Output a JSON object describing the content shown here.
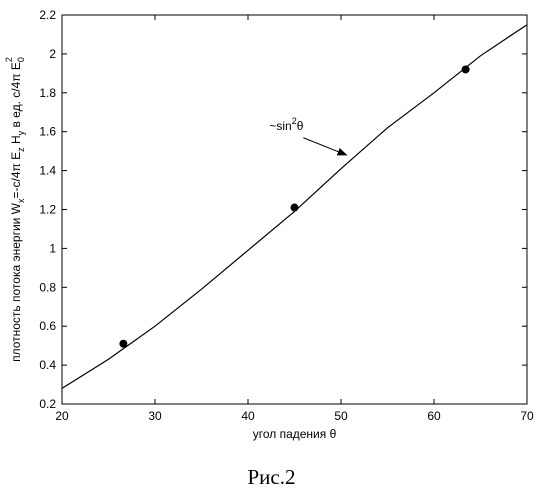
{
  "chart_data": {
    "type": "line",
    "xlabel": "угол падения θ",
    "ylabel": {
      "text_pre": "плотность потока энергии W",
      "sub_x": "x",
      "mid1": "=-c/4π E",
      "sub_z": "z",
      "mid2": " H",
      "sub_y": "y",
      "mid3": "  в ед. c/4π E",
      "sub_0": "0",
      "sup_2": "2"
    },
    "xlim": [
      20,
      70
    ],
    "ylim": [
      0.2,
      2.2
    ],
    "x_ticks": [
      20,
      30,
      40,
      50,
      60,
      70
    ],
    "x_tick_labels": [
      "20",
      "30",
      "40",
      "50",
      "60",
      "70"
    ],
    "y_ticks": [
      0.2,
      0.4,
      0.6,
      0.8,
      1.0,
      1.2,
      1.4,
      1.6,
      1.8,
      2.0,
      2.2
    ],
    "y_tick_labels": [
      "0.2",
      "0.4",
      "0.6",
      "0.8",
      "1",
      "1.2",
      "1.4",
      "1.6",
      "1.8",
      "2",
      "2.2"
    ],
    "grid": false,
    "series": [
      {
        "kind": "line",
        "x": [
          20,
          25,
          30,
          35,
          40,
          45,
          50,
          55,
          60,
          65,
          70
        ],
        "y": [
          0.28,
          0.43,
          0.6,
          0.79,
          0.99,
          1.19,
          1.41,
          1.62,
          1.8,
          1.99,
          2.15
        ]
      },
      {
        "kind": "scatter",
        "x": [
          26.6,
          45.0,
          63.4
        ],
        "y": [
          0.51,
          1.21,
          1.92
        ]
      }
    ],
    "annotation": {
      "text": "~sin",
      "sup": "2",
      "tail": "θ",
      "arrow_to": [
        50.6,
        1.48
      ],
      "text_at": [
        42.3,
        1.61
      ]
    }
  },
  "caption": "Рис.2"
}
